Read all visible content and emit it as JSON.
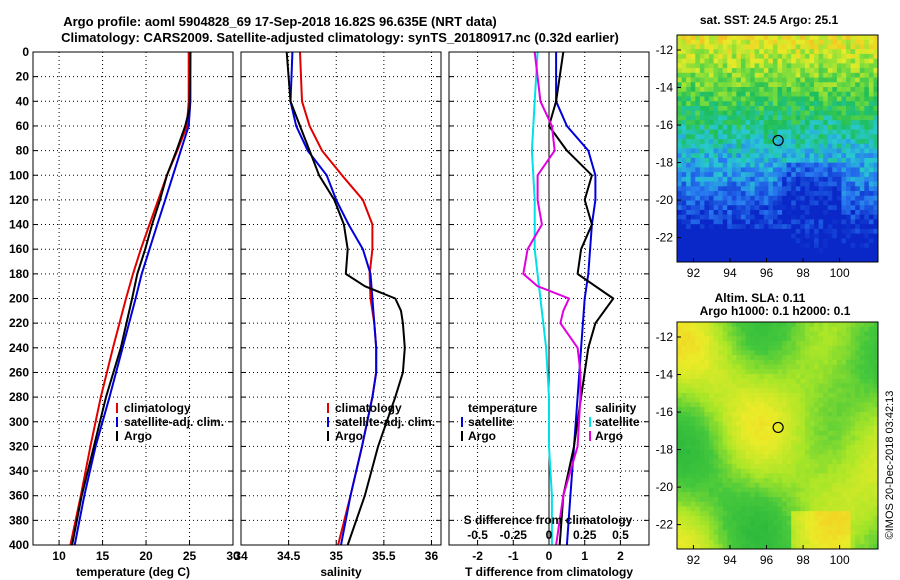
{
  "header": {
    "title_line1": "Argo profile: aoml 5904828_69 17-Sep-2018 16.82S 96.635E (NRT data)",
    "title_line2": "Climatology: CARS2009. Satellite-adjusted climatology: synTS_20180917.nc (0.32d earlier)"
  },
  "colors": {
    "climatology": "#e00000",
    "satellite": "#0000dd",
    "argo": "#000000",
    "t_diff": "#00e0e8",
    "s_diff": "#e000e0"
  },
  "chart_data": [
    {
      "type": "line",
      "name": "temperature",
      "xlabel": "temperature (deg C)",
      "ylabel": "",
      "xlim": [
        7,
        30
      ],
      "ylim": [
        0,
        400
      ],
      "xticks": [
        10,
        15,
        20,
        25,
        30
      ],
      "yticks": [
        0,
        20,
        40,
        60,
        80,
        100,
        120,
        140,
        160,
        180,
        200,
        220,
        240,
        260,
        280,
        300,
        320,
        340,
        360,
        380,
        400
      ],
      "legend": [
        "climatology",
        "satellite-adj. clim.",
        "Argo"
      ],
      "series": [
        {
          "name": "climatology",
          "color": "#e00000",
          "depth": [
            0,
            40,
            60,
            80,
            100,
            120,
            140,
            160,
            180,
            200,
            240,
            280,
            320,
            360,
            400
          ],
          "values": [
            24.9,
            24.9,
            24.7,
            23.6,
            22.4,
            21.4,
            20.4,
            19.4,
            18.5,
            17.7,
            16.2,
            14.8,
            13.6,
            12.5,
            11.3
          ]
        },
        {
          "name": "satellite-adj. clim.",
          "color": "#0000dd",
          "depth": [
            0,
            40,
            60,
            80,
            100,
            120,
            140,
            160,
            180,
            200,
            240,
            280,
            320,
            360,
            400
          ],
          "values": [
            25.1,
            25.1,
            24.9,
            24.0,
            23.1,
            22.2,
            21.3,
            20.4,
            19.5,
            18.8,
            17.3,
            15.8,
            14.2,
            12.9,
            11.8
          ]
        },
        {
          "name": "Argo",
          "color": "#000000",
          "depth": [
            0,
            46,
            60,
            80,
            100,
            120,
            140,
            160,
            180,
            200,
            240,
            280,
            320,
            360,
            400
          ],
          "values": [
            25.1,
            25.0,
            24.5,
            23.5,
            22.4,
            21.6,
            20.7,
            19.9,
            19.0,
            18.4,
            17.1,
            15.4,
            14.0,
            12.6,
            11.5
          ]
        }
      ]
    },
    {
      "type": "line",
      "name": "salinity",
      "xlabel": "salinity",
      "xlim": [
        34,
        36.1
      ],
      "ylim": [
        0,
        400
      ],
      "xticks": [
        34,
        34.5,
        35,
        35.5,
        36
      ],
      "legend": [
        "climatology",
        "satellite-adj. clim.",
        "Argo"
      ],
      "series": [
        {
          "name": "climatology",
          "color": "#e00000",
          "depth": [
            0,
            20,
            40,
            60,
            80,
            100,
            120,
            140,
            160,
            180,
            200,
            220,
            240,
            260,
            280,
            320,
            360,
            400
          ],
          "values": [
            34.62,
            34.63,
            34.64,
            34.72,
            34.85,
            35.06,
            35.28,
            35.38,
            35.38,
            35.35,
            35.36,
            35.4,
            35.42,
            35.42,
            35.38,
            35.27,
            35.15,
            35.02
          ]
        },
        {
          "name": "satellite-adj. clim.",
          "color": "#0000dd",
          "depth": [
            0,
            20,
            40,
            60,
            80,
            100,
            120,
            140,
            160,
            180,
            200,
            220,
            240,
            260,
            280,
            320,
            360,
            400
          ],
          "values": [
            34.54,
            34.53,
            34.52,
            34.58,
            34.7,
            34.9,
            35.0,
            35.13,
            35.28,
            35.36,
            35.38,
            35.4,
            35.42,
            35.42,
            35.38,
            35.27,
            35.15,
            35.05
          ]
        },
        {
          "name": "Argo",
          "color": "#000000",
          "depth": [
            0,
            20,
            40,
            60,
            80,
            100,
            120,
            140,
            160,
            180,
            190,
            200,
            210,
            220,
            240,
            260,
            280,
            320,
            360,
            400
          ],
          "values": [
            34.48,
            34.5,
            34.52,
            34.62,
            34.72,
            34.82,
            34.98,
            35.08,
            35.12,
            35.1,
            35.3,
            35.62,
            35.68,
            35.7,
            35.72,
            35.7,
            35.62,
            35.44,
            35.3,
            35.12
          ]
        }
      ]
    },
    {
      "type": "line",
      "name": "difference",
      "xlabel": "T difference from climatology",
      "xlabel2": "S difference from climatology",
      "xlim": [
        -2.8,
        2.8
      ],
      "ylim": [
        0,
        400
      ],
      "xticks": [
        -2,
        -1,
        0,
        1,
        2
      ],
      "xticks2": [
        "-0.5",
        "-0.25",
        "0",
        "0.25",
        "0.5"
      ],
      "legend_left": [
        "temperature",
        "satellite",
        "Argo"
      ],
      "legend_right": [
        "salinity",
        "satellite",
        "Argo"
      ],
      "series": [
        {
          "name": "temperature satellite",
          "color": "#0000dd",
          "depth": [
            0,
            40,
            60,
            80,
            100,
            120,
            140,
            180,
            200,
            240,
            280,
            320,
            360,
            400
          ],
          "values": [
            0.2,
            0.2,
            0.5,
            1.1,
            1.3,
            1.3,
            1.2,
            1.1,
            1.0,
            0.9,
            0.8,
            0.7,
            0.6,
            0.5
          ]
        },
        {
          "name": "temperature Argo",
          "color": "#000000",
          "depth": [
            0,
            20,
            40,
            60,
            80,
            100,
            120,
            140,
            160,
            180,
            200,
            220,
            240,
            260,
            280,
            320,
            360,
            400
          ],
          "values": [
            0.4,
            0.3,
            0.2,
            0.0,
            0.5,
            1.2,
            1.0,
            1.2,
            0.9,
            0.8,
            1.8,
            1.3,
            1.1,
            1.0,
            0.9,
            0.7,
            0.4,
            0.3
          ]
        },
        {
          "name": "salinity satellite",
          "color": "#00e0e8",
          "depth": [
            0,
            40,
            80,
            120,
            160,
            200,
            220,
            240,
            280,
            320,
            360,
            400
          ],
          "values": [
            -0.08,
            -0.1,
            -0.12,
            -0.1,
            -0.1,
            -0.06,
            -0.04,
            -0.02,
            0.0,
            0.0,
            0.02,
            0.02
          ]
        },
        {
          "name": "salinity Argo",
          "color": "#e000e0",
          "depth": [
            0,
            20,
            40,
            60,
            80,
            100,
            120,
            140,
            160,
            180,
            190,
            200,
            210,
            220,
            240,
            260,
            280,
            320,
            360,
            400
          ],
          "values": [
            -0.1,
            -0.08,
            -0.06,
            0.02,
            0.04,
            -0.08,
            -0.08,
            -0.05,
            -0.15,
            -0.18,
            -0.08,
            0.14,
            0.1,
            0.08,
            0.2,
            0.22,
            0.22,
            0.2,
            0.1,
            0.05
          ]
        }
      ]
    },
    {
      "type": "heatmap",
      "name": "sst-map",
      "title": "sat. SST: 24.5 Argo: 25.1",
      "xticks": [
        92,
        94,
        96,
        98,
        100
      ],
      "yticks": [
        -12,
        -14,
        -16,
        -18,
        -20,
        -22
      ],
      "xlim": [
        91.1,
        102.1
      ],
      "ylim": [
        -23.3,
        -11.2
      ],
      "marker": {
        "lon": 96.635,
        "lat": -16.82
      }
    },
    {
      "type": "heatmap",
      "name": "sla-map",
      "title_line1": "Altim. SLA: 0.11",
      "title_line2": "Argo h1000: 0.1 h2000: 0.1",
      "xticks": [
        92,
        94,
        96,
        98,
        100
      ],
      "yticks": [
        -12,
        -14,
        -16,
        -18,
        -20,
        -22
      ],
      "xlim": [
        91.1,
        102.1
      ],
      "ylim": [
        -23.3,
        -11.2
      ],
      "marker": {
        "lon": 96.635,
        "lat": -16.82
      }
    }
  ],
  "credit": "©IMOS 20-Dec-2018 03:42:13"
}
